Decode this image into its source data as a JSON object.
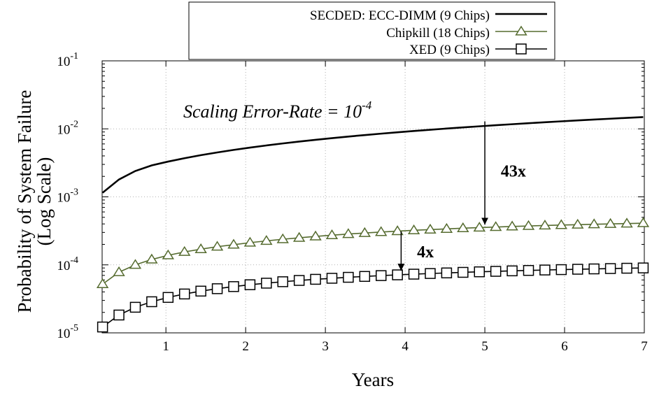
{
  "chart_data": {
    "type": "line",
    "subtitle_main": "Scaling Error-Rate = 10",
    "subtitle_exp": "-4",
    "xlabel": "Years",
    "ylabel_line1": "Probability of System Failure",
    "ylabel_line2": "(Log Scale)",
    "xlim": [
      0.2,
      7
    ],
    "ylim": [
      1e-05,
      0.1
    ],
    "y_scale": "log",
    "grid": true,
    "legend_position": "top-center",
    "x_ticks": [
      {
        "value": 1,
        "label": "1"
      },
      {
        "value": 2,
        "label": "2"
      },
      {
        "value": 3,
        "label": "3"
      },
      {
        "value": 4,
        "label": "4"
      },
      {
        "value": 5,
        "label": "5"
      },
      {
        "value": 6,
        "label": "6"
      },
      {
        "value": 7,
        "label": "7"
      }
    ],
    "y_ticks": [
      {
        "value": 1e-05,
        "base": "10",
        "exp": "-5"
      },
      {
        "value": 0.0001,
        "base": "10",
        "exp": "-4"
      },
      {
        "value": 0.001,
        "base": "10",
        "exp": "-3"
      },
      {
        "value": 0.01,
        "base": "10",
        "exp": "-2"
      },
      {
        "value": 0.1,
        "base": "10",
        "exp": "-1"
      }
    ],
    "x": [
      0.2055,
      0.411,
      0.6164,
      0.8219,
      1.0274,
      1.2329,
      1.4384,
      1.6438,
      1.8493,
      2.0548,
      2.2603,
      2.4658,
      2.6712,
      2.8767,
      3.0822,
      3.2877,
      3.4932,
      3.6986,
      3.9041,
      4.1096,
      4.3151,
      4.5205,
      4.726,
      4.9315,
      5.137,
      5.3425,
      5.5479,
      5.7534,
      5.9589,
      6.1644,
      6.3699,
      6.5753,
      6.7808,
      6.9863
    ],
    "series": [
      {
        "name": "SECDED: ECC-DIMM (9 Chips)",
        "color": "#000000",
        "marker": "none",
        "values": [
          0.00115,
          0.0018,
          0.0024,
          0.0029,
          0.0033,
          0.0037,
          0.0041,
          0.0045,
          0.0049,
          0.0053,
          0.0057,
          0.0061,
          0.0065,
          0.0069,
          0.0073,
          0.0077,
          0.0081,
          0.0085,
          0.0089,
          0.0093,
          0.0097,
          0.0101,
          0.0105,
          0.0109,
          0.0113,
          0.0117,
          0.0121,
          0.0125,
          0.0129,
          0.0133,
          0.0137,
          0.0141,
          0.0145,
          0.0149
        ]
      },
      {
        "name": "Chipkill (18 Chips)",
        "color": "#556b2f",
        "marker": "triangle",
        "values": [
          5.2e-05,
          7.8e-05,
          0.0001,
          0.00012,
          0.000138,
          0.000155,
          0.00017,
          0.000185,
          0.000198,
          0.000212,
          0.000225,
          0.000238,
          0.00025,
          0.000262,
          0.000273,
          0.000284,
          0.000294,
          0.000304,
          0.000313,
          0.000322,
          0.00033,
          0.000338,
          0.000346,
          0.000353,
          0.00036,
          0.000367,
          0.000373,
          0.000379,
          0.000385,
          0.00039,
          0.000395,
          0.0004,
          0.000405,
          0.00041
        ]
      },
      {
        "name": "XED (9 Chips)",
        "color": "#000000",
        "marker": "square",
        "values": [
          1.22e-05,
          1.83e-05,
          2.38e-05,
          2.87e-05,
          3.32e-05,
          3.73e-05,
          4.11e-05,
          4.46e-05,
          4.79e-05,
          5.1e-05,
          5.38e-05,
          5.65e-05,
          5.9e-05,
          6.13e-05,
          6.35e-05,
          6.56e-05,
          6.76e-05,
          6.95e-05,
          7.13e-05,
          7.3e-05,
          7.46e-05,
          7.61e-05,
          7.76e-05,
          7.9e-05,
          8.03e-05,
          8.16e-05,
          8.28e-05,
          8.4e-05,
          8.51e-05,
          8.62e-05,
          8.72e-05,
          8.82e-05,
          8.92e-05,
          9.01e-05
        ]
      }
    ],
    "annotations": [
      {
        "text": "43x",
        "x_year": 5,
        "y_from": 0.0129,
        "y_to": 0.00039,
        "label_x_year": 5.2,
        "label_y": 0.0024
      },
      {
        "text": "4x",
        "x_year": 3.95,
        "y_from": 0.00031,
        "y_to": 8.2e-05,
        "label_x_year": 4.15,
        "label_y": 0.000155
      }
    ]
  }
}
